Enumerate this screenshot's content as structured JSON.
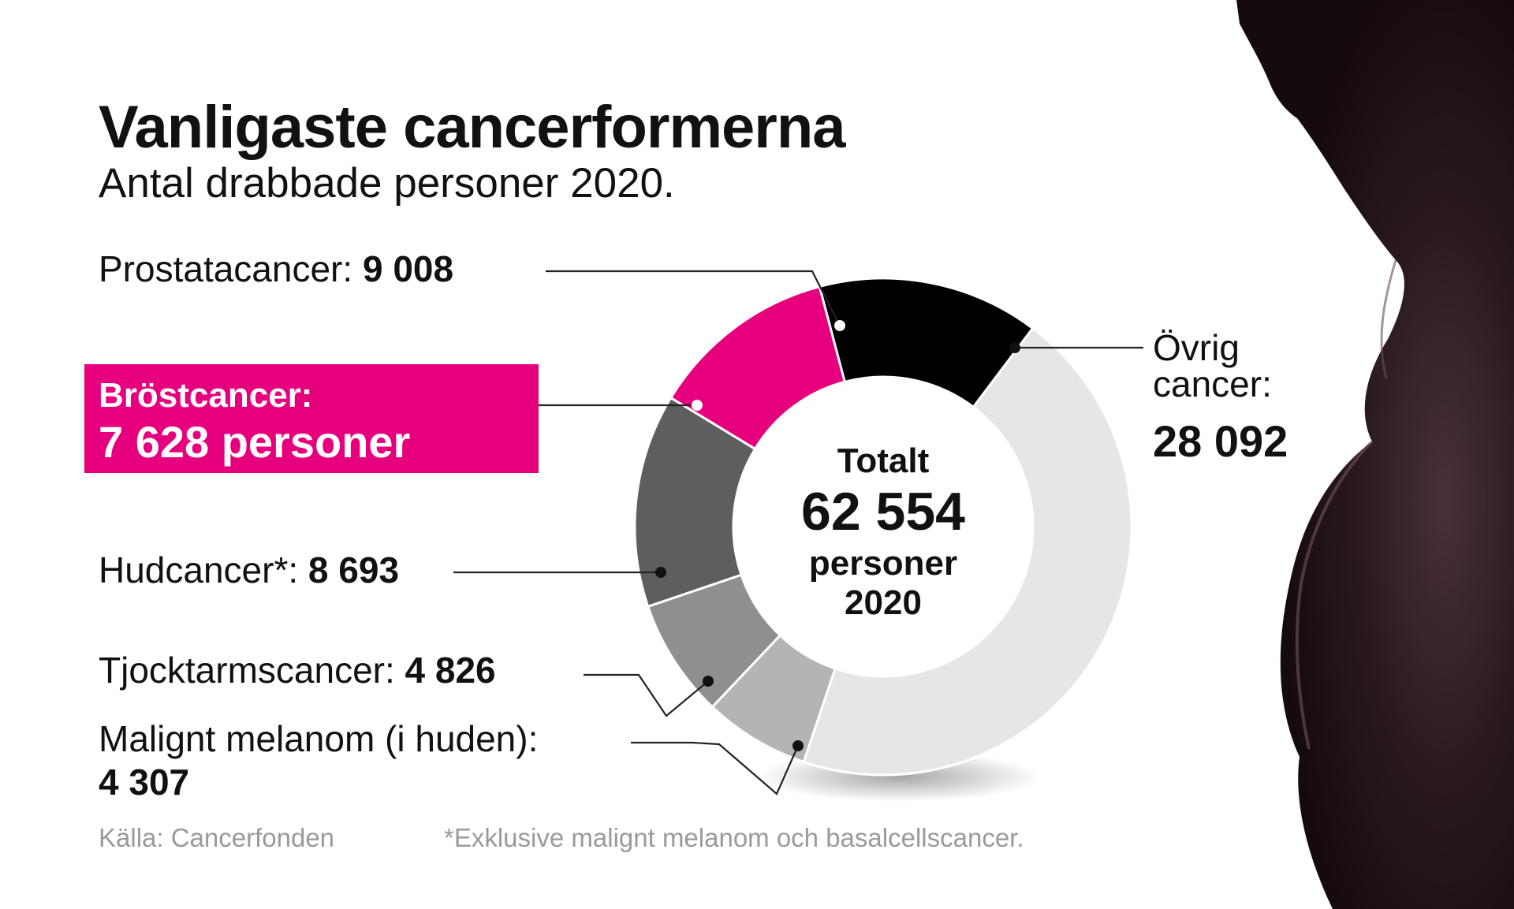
{
  "header": {
    "title": "Vanligaste cancerformerna",
    "subtitle": "Antal drabbade personer 2020."
  },
  "center": {
    "label": "Totalt",
    "total": "62 554",
    "unit": "personer",
    "year": "2020"
  },
  "labels": {
    "prostata_name": "Prostatacancer:",
    "prostata_value": "9 008",
    "brost_name": "Bröstcancer:",
    "brost_value": "7 628 personer",
    "hud_name": "Hudcancer*:",
    "hud_value": "8 693",
    "tjock_name": "Tjocktarmscancer:",
    "tjock_value": "4 826",
    "malign_name": "Malignt melanom (i huden):",
    "malign_value": "4 307",
    "ovrig_line1": "Övrig",
    "ovrig_line2": "cancer:",
    "ovrig_value": "28 092"
  },
  "footer": {
    "source": "Källa: Cancerfonden",
    "note": "*Exklusive malignt melanom och basalcellscancer."
  },
  "colors": {
    "highlight": "#e6007e",
    "prostata": "#000000",
    "brost": "#e6007e",
    "hud": "#5f5e5f",
    "tjock": "#8f8f8f",
    "malign": "#b4b4b4",
    "ovrig": "#e6e6e6",
    "silhouette": "#1c1014"
  },
  "chart_data": {
    "type": "pie",
    "title": "Vanligaste cancerformerna",
    "subtitle": "Antal drabbade personer 2020.",
    "total": 62554,
    "unit": "personer",
    "slices": [
      {
        "name": "Övrig cancer",
        "value": 28092,
        "color": "#e6e6e6"
      },
      {
        "name": "Malignt melanom (i huden)",
        "value": 4307,
        "color": "#b4b4b4"
      },
      {
        "name": "Tjocktarmscancer",
        "value": 4826,
        "color": "#8f8f8f"
      },
      {
        "name": "Hudcancer*",
        "value": 8693,
        "color": "#5f5e5f"
      },
      {
        "name": "Bröstcancer",
        "value": 7628,
        "color": "#e6007e"
      },
      {
        "name": "Prostatacancer",
        "value": 9008,
        "color": "#000000"
      }
    ]
  }
}
